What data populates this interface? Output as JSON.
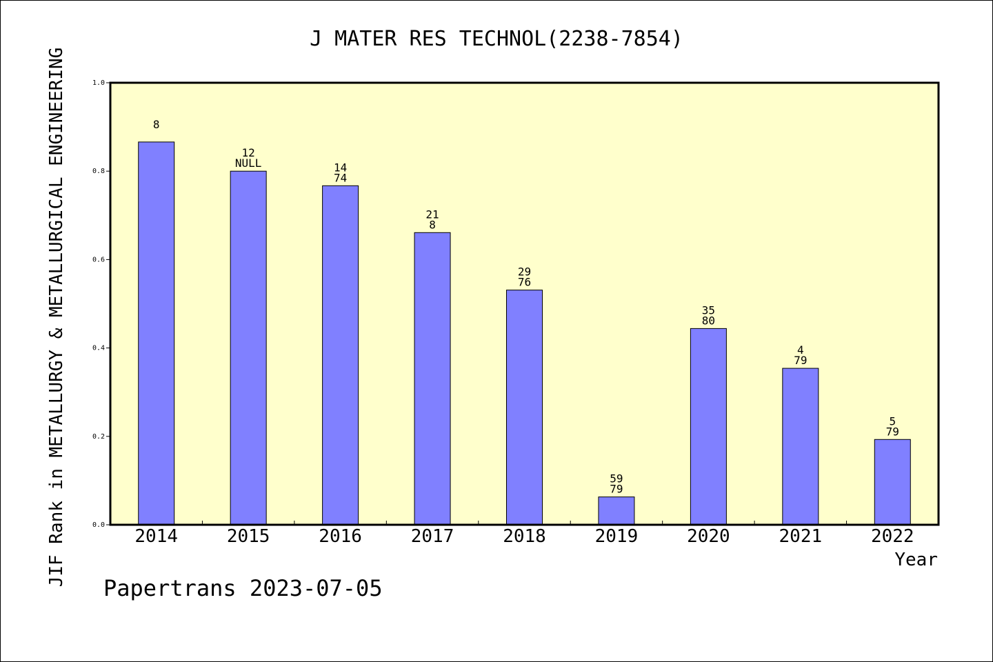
{
  "chart_data": {
    "type": "bar",
    "title": "J MATER RES TECHNOL(2238-7854)",
    "xlabel": "Year",
    "ylabel": "JIF Rank in METALLURGY & METALLURGICAL ENGINEERING",
    "categories": [
      "2014",
      "2015",
      "2016",
      "2017",
      "2018",
      "2019",
      "2020",
      "2021",
      "2022"
    ],
    "values": [
      0.866,
      0.8,
      0.767,
      0.661,
      0.531,
      0.063,
      0.444,
      0.354,
      0.193
    ],
    "labels_top": [
      "8",
      "12",
      "14",
      "21",
      "29",
      "59",
      "35",
      "4",
      "5"
    ],
    "labels_bottom": [
      "",
      "NULL",
      "74",
      "8",
      "76",
      "79",
      "80",
      "79",
      "79"
    ],
    "ylim": [
      0,
      1.0
    ],
    "yticks": [
      "0.0",
      "0.2",
      "0.4",
      "0.6",
      "0.8",
      "1.0"
    ],
    "grid": false,
    "colors": {
      "plot_bg": "#ffffcc",
      "bar": "#8080ff",
      "text": "#000000"
    }
  },
  "footer": "Papertrans 2023-07-05"
}
